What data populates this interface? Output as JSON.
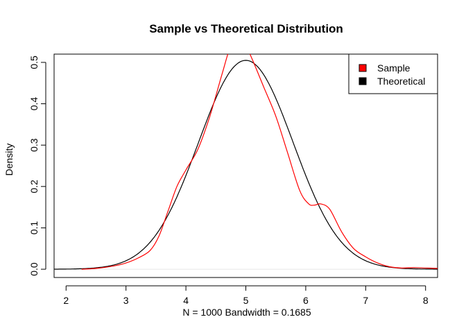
{
  "chart_data": {
    "type": "line",
    "title": "Sample vs Theoretical Distribution",
    "xlabel": "N = 1000   Bandwidth = 0.1685",
    "ylabel": "Density",
    "xlim": [
      1.8,
      8.2
    ],
    "ylim": [
      -0.02,
      0.52
    ],
    "x_ticks": [
      "2",
      "3",
      "4",
      "5",
      "6",
      "7",
      "8"
    ],
    "y_ticks": [
      "0.0",
      "0.1",
      "0.2",
      "0.3",
      "0.4",
      "0.5"
    ],
    "grid": false,
    "legend_position": "top-right",
    "series": [
      {
        "name": "Sample",
        "color": "#ff0000",
        "points": [
          [
            2.26,
            0.0
          ],
          [
            2.5,
            0.002
          ],
          [
            2.8,
            0.008
          ],
          [
            3.0,
            0.015
          ],
          [
            3.2,
            0.027
          ],
          [
            3.4,
            0.045
          ],
          [
            3.55,
            0.08
          ],
          [
            3.7,
            0.14
          ],
          [
            3.85,
            0.2
          ],
          [
            4.0,
            0.24
          ],
          [
            4.2,
            0.29
          ],
          [
            4.4,
            0.37
          ],
          [
            4.6,
            0.47
          ],
          [
            4.75,
            0.54
          ],
          [
            4.9,
            0.56
          ],
          [
            5.0,
            0.54
          ],
          [
            5.1,
            0.51
          ],
          [
            5.3,
            0.44
          ],
          [
            5.5,
            0.37
          ],
          [
            5.7,
            0.28
          ],
          [
            5.9,
            0.19
          ],
          [
            6.05,
            0.158
          ],
          [
            6.15,
            0.155
          ],
          [
            6.25,
            0.158
          ],
          [
            6.4,
            0.145
          ],
          [
            6.6,
            0.09
          ],
          [
            6.8,
            0.05
          ],
          [
            7.0,
            0.03
          ],
          [
            7.2,
            0.015
          ],
          [
            7.4,
            0.006
          ],
          [
            7.6,
            0.003
          ],
          [
            7.8,
            0.004
          ],
          [
            8.0,
            0.003
          ],
          [
            8.2,
            0.002
          ]
        ]
      },
      {
        "name": "Theoretical",
        "color": "#000000",
        "distribution": "normal",
        "mean": 5,
        "sd": 0.79,
        "x_range": [
          1.8,
          8.2
        ]
      }
    ]
  }
}
